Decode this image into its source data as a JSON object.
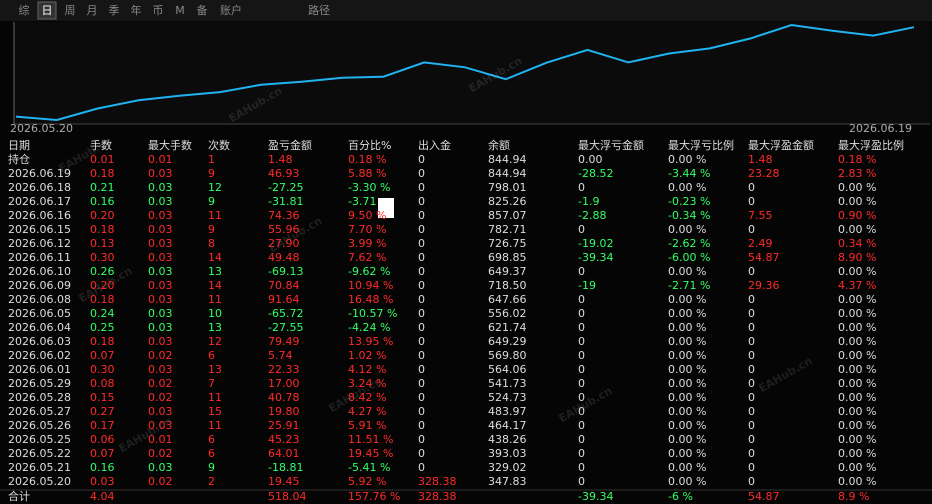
{
  "tabs": [
    "综",
    "日",
    "周",
    "月",
    "季",
    "年",
    "币",
    "M",
    "备",
    "账户"
  ],
  "path_label": "路径",
  "chart": {
    "x_start": "2026.05.20",
    "x_end": "2026.06.19"
  },
  "watermark": "EAHub.cn",
  "table": {
    "header": [
      "日期",
      "手数",
      "最大手数",
      "次数",
      "盈亏金额",
      "百分比%",
      "出入金",
      "余额",
      "最大浮亏金额",
      "最大浮亏比例",
      "最大浮盈金额",
      "最大浮盈比例"
    ],
    "rows": [
      [
        "持仓",
        "0.01",
        "0.01",
        "1",
        "1.48",
        "0.18 %",
        "0",
        "844.94",
        "0.00",
        "0.00 %",
        "1.48",
        "0.18 %"
      ],
      [
        "2026.06.19",
        "0.18",
        "0.03",
        "9",
        "46.93",
        "5.88 %",
        "0",
        "844.94",
        "-28.52",
        "-3.44 %",
        "23.28",
        "2.83 %"
      ],
      [
        "2026.06.18",
        "0.21",
        "0.03",
        "12",
        "-27.25",
        "-3.30 %",
        "0",
        "798.01",
        "0",
        "0.00 %",
        "0",
        "0.00 %"
      ],
      [
        "2026.06.17",
        "0.16",
        "0.03",
        "9",
        "-31.81",
        "-3.71",
        "0",
        "825.26",
        "-1.9",
        "-0.23 %",
        "0",
        "0.00 %"
      ],
      [
        "2026.06.16",
        "0.20",
        "0.03",
        "11",
        "74.36",
        "9.50 %",
        "0",
        "857.07",
        "-2.88",
        "-0.34 %",
        "7.55",
        "0.90 %"
      ],
      [
        "2026.06.15",
        "0.18",
        "0.03",
        "9",
        "55.96",
        "7.70 %",
        "0",
        "782.71",
        "0",
        "0.00 %",
        "0",
        "0.00 %"
      ],
      [
        "2026.06.12",
        "0.13",
        "0.03",
        "8",
        "27.90",
        "3.99 %",
        "0",
        "726.75",
        "-19.02",
        "-2.62 %",
        "2.49",
        "0.34 %"
      ],
      [
        "2026.06.11",
        "0.30",
        "0.03",
        "14",
        "49.48",
        "7.62 %",
        "0",
        "698.85",
        "-39.34",
        "-6.00 %",
        "54.87",
        "8.90 %"
      ],
      [
        "2026.06.10",
        "0.26",
        "0.03",
        "13",
        "-69.13",
        "-9.62 %",
        "0",
        "649.37",
        "0",
        "0.00 %",
        "0",
        "0.00 %"
      ],
      [
        "2026.06.09",
        "0.20",
        "0.03",
        "14",
        "70.84",
        "10.94 %",
        "0",
        "718.50",
        "-19",
        "-2.71 %",
        "29.36",
        "4.37 %"
      ],
      [
        "2026.06.08",
        "0.18",
        "0.03",
        "11",
        "91.64",
        "16.48 %",
        "0",
        "647.66",
        "0",
        "0.00 %",
        "0",
        "0.00 %"
      ],
      [
        "2026.06.05",
        "0.24",
        "0.03",
        "10",
        "-65.72",
        "-10.57 %",
        "0",
        "556.02",
        "0",
        "0.00 %",
        "0",
        "0.00 %"
      ],
      [
        "2026.06.04",
        "0.25",
        "0.03",
        "13",
        "-27.55",
        "-4.24 %",
        "0",
        "621.74",
        "0",
        "0.00 %",
        "0",
        "0.00 %"
      ],
      [
        "2026.06.03",
        "0.18",
        "0.03",
        "12",
        "79.49",
        "13.95 %",
        "0",
        "649.29",
        "0",
        "0.00 %",
        "0",
        "0.00 %"
      ],
      [
        "2026.06.02",
        "0.07",
        "0.02",
        "6",
        "5.74",
        "1.02 %",
        "0",
        "569.80",
        "0",
        "0.00 %",
        "0",
        "0.00 %"
      ],
      [
        "2026.06.01",
        "0.30",
        "0.03",
        "13",
        "22.33",
        "4.12 %",
        "0",
        "564.06",
        "0",
        "0.00 %",
        "0",
        "0.00 %"
      ],
      [
        "2026.05.29",
        "0.08",
        "0.02",
        "7",
        "17.00",
        "3.24 %",
        "0",
        "541.73",
        "0",
        "0.00 %",
        "0",
        "0.00 %"
      ],
      [
        "2026.05.28",
        "0.15",
        "0.02",
        "11",
        "40.78",
        "8.42 %",
        "0",
        "524.73",
        "0",
        "0.00 %",
        "0",
        "0.00 %"
      ],
      [
        "2026.05.27",
        "0.27",
        "0.03",
        "15",
        "19.80",
        "4.27 %",
        "0",
        "483.97",
        "0",
        "0.00 %",
        "0",
        "0.00 %"
      ],
      [
        "2026.05.26",
        "0.17",
        "0.03",
        "11",
        "25.91",
        "5.91 %",
        "0",
        "464.17",
        "0",
        "0.00 %",
        "0",
        "0.00 %"
      ],
      [
        "2026.05.25",
        "0.06",
        "0.01",
        "6",
        "45.23",
        "11.51 %",
        "0",
        "438.26",
        "0",
        "0.00 %",
        "0",
        "0.00 %"
      ],
      [
        "2026.05.22",
        "0.07",
        "0.02",
        "6",
        "64.01",
        "19.45 %",
        "0",
        "393.03",
        "0",
        "0.00 %",
        "0",
        "0.00 %"
      ],
      [
        "2026.05.21",
        "0.16",
        "0.03",
        "9",
        "-18.81",
        "-5.41 %",
        "0",
        "329.02",
        "0",
        "0.00 %",
        "0",
        "0.00 %"
      ],
      [
        "2026.05.20",
        "0.03",
        "0.02",
        "2",
        "19.45",
        "5.92 %",
        "328.38",
        "347.83",
        "0",
        "0.00 %",
        "0",
        "0.00 %"
      ]
    ],
    "total": [
      "合计",
      "4.04",
      null,
      null,
      "518.04",
      "157.76 %",
      "328.38",
      null,
      "-39.34",
      "-6 %",
      "54.87",
      "8.9 %"
    ]
  }
}
